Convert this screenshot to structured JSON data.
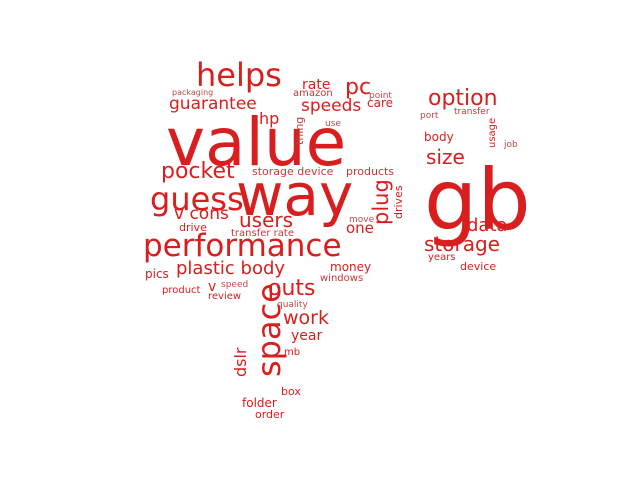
{
  "word_cloud": {
    "colors": {
      "primary": "#d81e1e",
      "secondary": "#c13a3a",
      "muted": "#b84a4a"
    },
    "words": [
      {
        "text": "value",
        "weight": 100,
        "color": "#d81e1e",
        "orientation": "horizontal"
      },
      {
        "text": "gb",
        "weight": 100,
        "color": "#d81e1e",
        "orientation": "horizontal"
      },
      {
        "text": "way",
        "weight": 80,
        "color": "#d81e1e",
        "orientation": "horizontal"
      },
      {
        "text": "performance",
        "weight": 40,
        "color": "#d81e1e",
        "orientation": "horizontal"
      },
      {
        "text": "helps",
        "weight": 40,
        "color": "#d81e1e",
        "orientation": "horizontal"
      },
      {
        "text": "guess",
        "weight": 40,
        "color": "#d81e1e",
        "orientation": "horizontal"
      },
      {
        "text": "space",
        "weight": 40,
        "color": "#d81e1e",
        "orientation": "vertical"
      },
      {
        "text": "option",
        "weight": 25,
        "color": "#d81e1e",
        "orientation": "horizontal"
      },
      {
        "text": "storage",
        "weight": 25,
        "color": "#d81e1e",
        "orientation": "horizontal"
      },
      {
        "text": "outs",
        "weight": 25,
        "color": "#d81e1e",
        "orientation": "horizontal"
      },
      {
        "text": "pocket",
        "weight": 25,
        "color": "#d81e1e",
        "orientation": "horizontal"
      },
      {
        "text": "users",
        "weight": 22,
        "color": "#d81e1e",
        "orientation": "horizontal"
      },
      {
        "text": "size",
        "weight": 22,
        "color": "#d81e1e",
        "orientation": "horizontal"
      },
      {
        "text": "plug",
        "weight": 22,
        "color": "#d81e1e",
        "orientation": "vertical"
      },
      {
        "text": "pc",
        "weight": 22,
        "color": "#d81e1e",
        "orientation": "horizontal"
      },
      {
        "text": "plastic body",
        "weight": 20,
        "color": "#d81e1e",
        "orientation": "horizontal"
      },
      {
        "text": "work",
        "weight": 20,
        "color": "#d81e1e",
        "orientation": "horizontal"
      },
      {
        "text": "data",
        "weight": 20,
        "color": "#d81e1e",
        "orientation": "horizontal"
      },
      {
        "text": "speeds",
        "weight": 18,
        "color": "#d81e1e",
        "orientation": "horizontal"
      },
      {
        "text": "guarantee",
        "weight": 18,
        "color": "#d81e1e",
        "orientation": "horizontal"
      },
      {
        "text": "hp",
        "weight": 18,
        "color": "#d81e1e",
        "orientation": "horizontal"
      },
      {
        "text": "v cons",
        "weight": 18,
        "color": "#d81e1e",
        "orientation": "horizontal"
      },
      {
        "text": "dslr",
        "weight": 16,
        "color": "#d81e1e",
        "orientation": "vertical"
      },
      {
        "text": "one",
        "weight": 15,
        "color": "#d81e1e",
        "orientation": "horizontal"
      },
      {
        "text": "rate",
        "weight": 14,
        "color": "#d81e1e",
        "orientation": "horizontal"
      },
      {
        "text": "year",
        "weight": 14,
        "color": "#d81e1e",
        "orientation": "horizontal"
      },
      {
        "text": "v",
        "weight": 14,
        "color": "#d81e1e",
        "orientation": "horizontal"
      },
      {
        "text": "body",
        "weight": 12,
        "color": "#d81e1e",
        "orientation": "horizontal"
      },
      {
        "text": "money",
        "weight": 12,
        "color": "#d81e1e",
        "orientation": "horizontal"
      },
      {
        "text": "pics",
        "weight": 12,
        "color": "#d81e1e",
        "orientation": "horizontal"
      },
      {
        "text": "care",
        "weight": 11,
        "color": "#d81e1e",
        "orientation": "horizontal"
      },
      {
        "text": "folder",
        "weight": 11,
        "color": "#d81e1e",
        "orientation": "horizontal"
      },
      {
        "text": "thing",
        "weight": 11,
        "color": "#c13a3a",
        "orientation": "vertical"
      },
      {
        "text": "drive",
        "weight": 10,
        "color": "#d81e1e",
        "orientation": "horizontal"
      },
      {
        "text": "drives",
        "weight": 10,
        "color": "#d81e1e",
        "orientation": "vertical"
      },
      {
        "text": "storage device",
        "weight": 10,
        "color": "#c13a3a",
        "orientation": "horizontal"
      },
      {
        "text": "products",
        "weight": 10,
        "color": "#c13a3a",
        "orientation": "horizontal"
      },
      {
        "text": "device",
        "weight": 10,
        "color": "#d81e1e",
        "orientation": "horizontal"
      },
      {
        "text": "usage",
        "weight": 10,
        "color": "#d81e1e",
        "orientation": "vertical"
      },
      {
        "text": "amazon",
        "weight": 10,
        "color": "#c13a3a",
        "orientation": "horizontal"
      },
      {
        "text": "order",
        "weight": 10,
        "color": "#d81e1e",
        "orientation": "horizontal"
      },
      {
        "text": "box",
        "weight": 10,
        "color": "#d81e1e",
        "orientation": "horizontal"
      },
      {
        "text": "transfer rate",
        "weight": 9,
        "color": "#c13a3a",
        "orientation": "horizontal"
      },
      {
        "text": "years",
        "weight": 9,
        "color": "#d81e1e",
        "orientation": "horizontal"
      },
      {
        "text": "product",
        "weight": 9,
        "color": "#d81e1e",
        "orientation": "horizontal"
      },
      {
        "text": "review",
        "weight": 9,
        "color": "#d81e1e",
        "orientation": "horizontal"
      },
      {
        "text": "windows",
        "weight": 9,
        "color": "#c13a3a",
        "orientation": "horizontal"
      },
      {
        "text": "mb",
        "weight": 9,
        "color": "#d81e1e",
        "orientation": "horizontal"
      },
      {
        "text": "transfer",
        "weight": 8,
        "color": "#c13a3a",
        "orientation": "horizontal"
      },
      {
        "text": "packaging",
        "weight": 8,
        "color": "#b84a4a",
        "orientation": "horizontal"
      },
      {
        "text": "point",
        "weight": 8,
        "color": "#b84a4a",
        "orientation": "horizontal"
      },
      {
        "text": "port",
        "weight": 8,
        "color": "#b84a4a",
        "orientation": "horizontal"
      },
      {
        "text": "job",
        "weight": 8,
        "color": "#b84a4a",
        "orientation": "horizontal"
      },
      {
        "text": "use",
        "weight": 8,
        "color": "#b84a4a",
        "orientation": "horizontal"
      },
      {
        "text": "move",
        "weight": 8,
        "color": "#b84a4a",
        "orientation": "horizontal"
      },
      {
        "text": "speed",
        "weight": 8,
        "color": "#b84a4a",
        "orientation": "horizontal"
      },
      {
        "text": "quality",
        "weight": 8,
        "color": "#b84a4a",
        "orientation": "horizontal"
      }
    ]
  }
}
